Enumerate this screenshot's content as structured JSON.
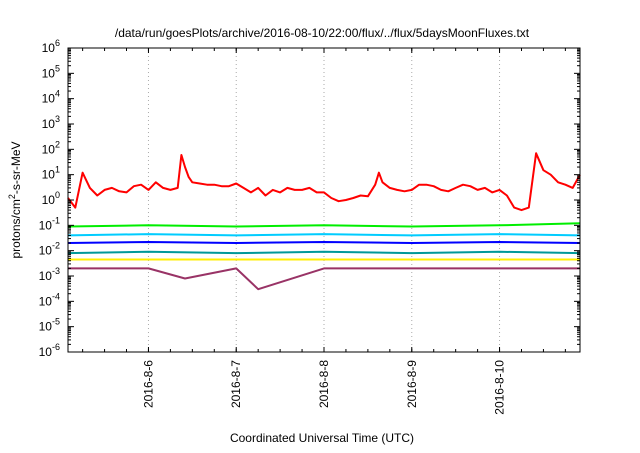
{
  "chart_data": {
    "type": "line",
    "title": "/data/run/goesPlots/archive/2016-08-10/22:00/flux/../flux/5daysMoonFluxes.txt",
    "xlabel": "Coordinated Universal Time (UTC)",
    "ylabel": {
      "prefix": "protons/cm",
      "superscript": "2",
      "suffix": "-s-sr-MeV"
    },
    "y_scale": "log",
    "ylim": [
      1e-06,
      1000000.0
    ],
    "y_ticks": [
      {
        "exp": -6,
        "base": "10",
        "power": "-6"
      },
      {
        "exp": -5,
        "base": "10",
        "power": "-5"
      },
      {
        "exp": -4,
        "base": "10",
        "power": "-4"
      },
      {
        "exp": -3,
        "base": "10",
        "power": "-3"
      },
      {
        "exp": -2,
        "base": "10",
        "power": "-2"
      },
      {
        "exp": -1,
        "base": "10",
        "power": "-1"
      },
      {
        "exp": 0,
        "base": "10",
        "power": "0"
      },
      {
        "exp": 1,
        "base": "10",
        "power": "1"
      },
      {
        "exp": 2,
        "base": "10",
        "power": "2"
      },
      {
        "exp": 3,
        "base": "10",
        "power": "3"
      },
      {
        "exp": 4,
        "base": "10",
        "power": "4"
      },
      {
        "exp": 5,
        "base": "10",
        "power": "5"
      },
      {
        "exp": 6,
        "base": "10",
        "power": "6"
      }
    ],
    "xlim": [
      "2016-08-05 02:00",
      "2016-08-10 22:00"
    ],
    "x_ticks": [
      {
        "value": "2016-08-06 00:00",
        "label": "2016-8-6"
      },
      {
        "value": "2016-08-07 00:00",
        "label": "2016-8-7"
      },
      {
        "value": "2016-08-08 00:00",
        "label": "2016-8-8"
      },
      {
        "value": "2016-08-09 00:00",
        "label": "2016-8-9"
      },
      {
        "value": "2016-08-10 00:00",
        "label": "2016-8-10"
      }
    ],
    "grid": {
      "x": true,
      "y": false
    },
    "series": [
      {
        "color": "#ff0000",
        "x": [
          "2016-08-05 02:00",
          "2016-08-05 04:00",
          "2016-08-05 06:00",
          "2016-08-05 08:00",
          "2016-08-05 10:00",
          "2016-08-05 12:00",
          "2016-08-05 14:00",
          "2016-08-05 16:00",
          "2016-08-05 18:00",
          "2016-08-05 20:00",
          "2016-08-05 22:00",
          "2016-08-06 00:00",
          "2016-08-06 02:00",
          "2016-08-06 04:00",
          "2016-08-06 06:00",
          "2016-08-06 08:00",
          "2016-08-06 09:00",
          "2016-08-06 10:00",
          "2016-08-06 11:00",
          "2016-08-06 12:00",
          "2016-08-06 14:00",
          "2016-08-06 16:00",
          "2016-08-06 18:00",
          "2016-08-06 20:00",
          "2016-08-06 22:00",
          "2016-08-07 00:00",
          "2016-08-07 02:00",
          "2016-08-07 04:00",
          "2016-08-07 06:00",
          "2016-08-07 08:00",
          "2016-08-07 10:00",
          "2016-08-07 12:00",
          "2016-08-07 14:00",
          "2016-08-07 16:00",
          "2016-08-07 18:00",
          "2016-08-07 20:00",
          "2016-08-07 22:00",
          "2016-08-08 00:00",
          "2016-08-08 02:00",
          "2016-08-08 04:00",
          "2016-08-08 06:00",
          "2016-08-08 08:00",
          "2016-08-08 10:00",
          "2016-08-08 12:00",
          "2016-08-08 14:00",
          "2016-08-08 15:00",
          "2016-08-08 16:00",
          "2016-08-08 18:00",
          "2016-08-08 20:00",
          "2016-08-08 22:00",
          "2016-08-09 00:00",
          "2016-08-09 02:00",
          "2016-08-09 04:00",
          "2016-08-09 06:00",
          "2016-08-09 08:00",
          "2016-08-09 10:00",
          "2016-08-09 12:00",
          "2016-08-09 14:00",
          "2016-08-09 16:00",
          "2016-08-09 18:00",
          "2016-08-09 20:00",
          "2016-08-09 22:00",
          "2016-08-10 00:00",
          "2016-08-10 02:00",
          "2016-08-10 04:00",
          "2016-08-10 06:00",
          "2016-08-10 08:00",
          "2016-08-10 10:00",
          "2016-08-10 12:00",
          "2016-08-10 14:00",
          "2016-08-10 16:00",
          "2016-08-10 18:00",
          "2016-08-10 20:00",
          "2016-08-10 22:00"
        ],
        "values": [
          1.2,
          0.5,
          12,
          3,
          1.5,
          2.5,
          3,
          2.2,
          2,
          3.5,
          4,
          2.5,
          5,
          3,
          2.5,
          3,
          60,
          20,
          8,
          5,
          4.5,
          4,
          4,
          3.5,
          3.5,
          4.5,
          3,
          2,
          3,
          1.5,
          2.5,
          2,
          3,
          2.5,
          2.5,
          3,
          2,
          2,
          1.2,
          0.9,
          1,
          1.2,
          1.5,
          1.4,
          4,
          12,
          5,
          3,
          2.5,
          2.2,
          2.5,
          4,
          4,
          3.5,
          2.5,
          2.2,
          3,
          4,
          3.5,
          2.5,
          3,
          2,
          2.5,
          1.5,
          0.5,
          0.4,
          0.5,
          70,
          15,
          10,
          5,
          4,
          3,
          10
        ]
      },
      {
        "color": "#00ee00",
        "x": [
          "2016-08-05 02:00",
          "2016-08-06 00:00",
          "2016-08-07 00:00",
          "2016-08-08 00:00",
          "2016-08-09 00:00",
          "2016-08-10 00:00",
          "2016-08-10 22:00"
        ],
        "values": [
          0.09,
          0.1,
          0.09,
          0.1,
          0.09,
          0.1,
          0.12
        ]
      },
      {
        "color": "#00ccff",
        "x": [
          "2016-08-05 02:00",
          "2016-08-06 00:00",
          "2016-08-07 00:00",
          "2016-08-08 00:00",
          "2016-08-09 00:00",
          "2016-08-10 00:00",
          "2016-08-10 22:00"
        ],
        "values": [
          0.04,
          0.045,
          0.04,
          0.045,
          0.04,
          0.045,
          0.04
        ]
      },
      {
        "color": "#0000ff",
        "x": [
          "2016-08-05 02:00",
          "2016-08-06 00:00",
          "2016-08-07 00:00",
          "2016-08-08 00:00",
          "2016-08-09 00:00",
          "2016-08-10 00:00",
          "2016-08-10 22:00"
        ],
        "values": [
          0.02,
          0.022,
          0.02,
          0.022,
          0.02,
          0.022,
          0.02
        ]
      },
      {
        "color": "#009999",
        "x": [
          "2016-08-05 02:00",
          "2016-08-06 00:00",
          "2016-08-07 00:00",
          "2016-08-08 00:00",
          "2016-08-09 00:00",
          "2016-08-10 00:00",
          "2016-08-10 22:00"
        ],
        "values": [
          0.008,
          0.009,
          0.008,
          0.009,
          0.008,
          0.009,
          0.008
        ]
      },
      {
        "color": "#ffee00",
        "x": [
          "2016-08-05 02:00",
          "2016-08-06 00:00",
          "2016-08-07 00:00",
          "2016-08-08 00:00",
          "2016-08-09 00:00",
          "2016-08-10 00:00",
          "2016-08-10 22:00"
        ],
        "values": [
          0.0045,
          0.0045,
          0.0045,
          0.0045,
          0.0045,
          0.0045,
          0.0045
        ]
      },
      {
        "color": "#993366",
        "x": [
          "2016-08-05 02:00",
          "2016-08-06 00:00",
          "2016-08-06 10:00",
          "2016-08-07 00:00",
          "2016-08-07 06:00",
          "2016-08-08 00:00",
          "2016-08-09 00:00",
          "2016-08-10 00:00",
          "2016-08-10 22:00"
        ],
        "values": [
          0.002,
          0.002,
          0.0008,
          0.002,
          0.0003,
          0.002,
          0.002,
          0.002,
          0.002
        ]
      }
    ]
  }
}
